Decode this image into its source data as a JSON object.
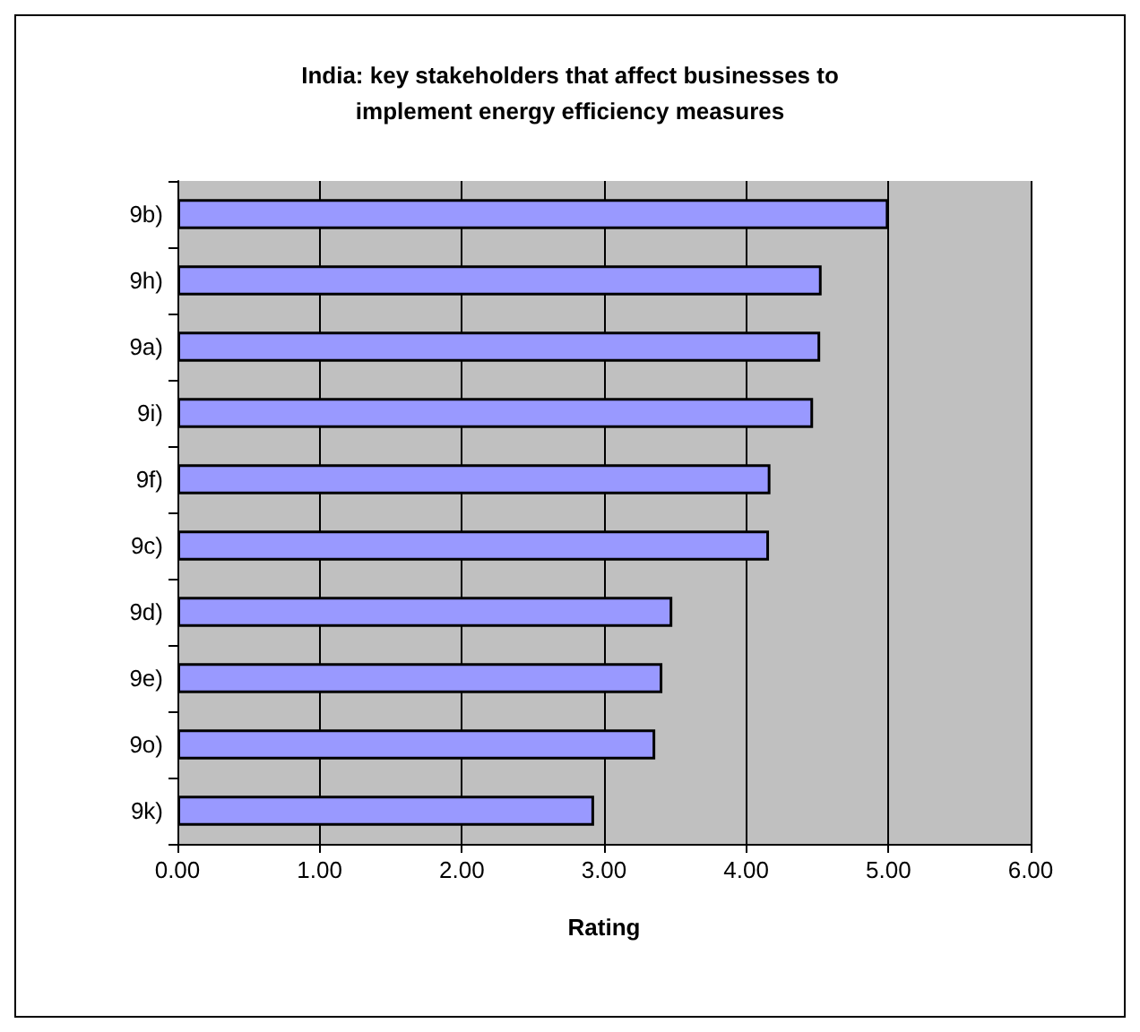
{
  "chart_data": {
    "type": "bar",
    "orientation": "horizontal",
    "title": "India: key stakeholders that affect businesses to\nimplement energy efficiency measures",
    "xlabel": "Rating",
    "categories": [
      "9b)",
      "9h)",
      "9a)",
      "9i)",
      "9f)",
      "9c)",
      "9d)",
      "9e)",
      "9o)",
      "9k)"
    ],
    "values": [
      5.0,
      4.53,
      4.52,
      4.47,
      4.17,
      4.16,
      3.48,
      3.41,
      3.36,
      2.93
    ],
    "color": "#9999ff",
    "xlim": [
      0,
      6
    ],
    "xticks": [
      {
        "value": 0,
        "label": "0.00"
      },
      {
        "value": 1,
        "label": "1.00"
      },
      {
        "value": 2,
        "label": "2.00"
      },
      {
        "value": 3,
        "label": "3.00"
      },
      {
        "value": 4,
        "label": "4.00"
      },
      {
        "value": 5,
        "label": "5.00"
      },
      {
        "value": 6,
        "label": "6.00"
      }
    ],
    "grid": "x"
  }
}
